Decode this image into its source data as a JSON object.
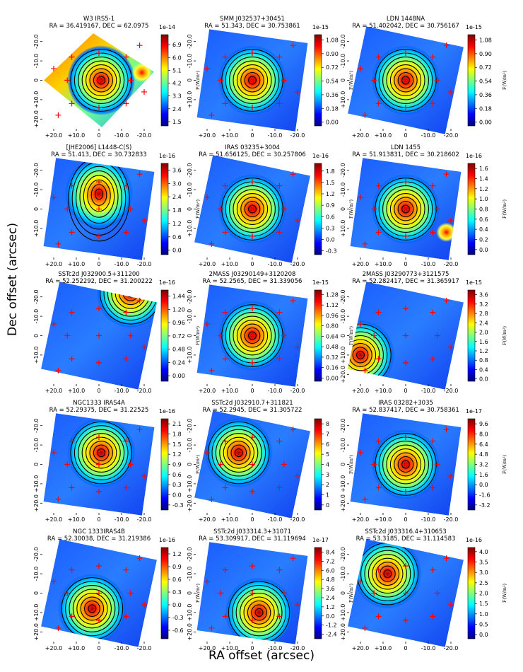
{
  "figure": {
    "xlabel": "RA offset (arcsec)",
    "ylabel": "Dec offset (arcsec)",
    "colorbar_unit": "F(W/m²)"
  },
  "chart_data": [
    {
      "type": "heatmap",
      "title": "W3 IRS5-1",
      "subtitle": "RA = 36.419167, DEC = 62.0975",
      "xlabel": "RA offset (arcsec)",
      "ylabel": "Dec offset (arcsec)",
      "xticks": [
        "+20.0",
        "+10.0",
        "0",
        "-10.0",
        "-20.0"
      ],
      "yticks": [
        "-20.0",
        "-10.0",
        "0",
        "+10.0",
        "+20.0"
      ],
      "cbar_ticks": [
        "1.5",
        "2.4",
        "3.3",
        "4.2",
        "5.1",
        "6.0",
        "6.9"
      ],
      "cbar_exp": "1e-14",
      "cmap_range": [
        1.2,
        7.6
      ],
      "peak_offset": [
        -1,
        0
      ],
      "secondary_peak": [
        -19,
        -4
      ],
      "shape": "diamond"
    },
    {
      "type": "heatmap",
      "title": "SMM J032537+30451",
      "subtitle": "RA = 51.343, DEC = 30.753861",
      "xlabel": "RA offset (arcsec)",
      "ylabel": "Dec offset (arcsec)",
      "xticks": [
        "+20.0",
        "+10.0",
        "0",
        "-10.0",
        "-20.0"
      ],
      "yticks": [
        "-20.0",
        "-10.0",
        "0",
        "+10.0"
      ],
      "cbar_ticks": [
        "0.00",
        "0.18",
        "0.36",
        "0.54",
        "0.72",
        "0.90",
        "1.08"
      ],
      "cbar_exp": "1e-15",
      "cmap_range": [
        -0.05,
        1.15
      ],
      "peak_offset": [
        0,
        0
      ],
      "shape": "tilted"
    },
    {
      "type": "heatmap",
      "title": "LDN 1448NA",
      "subtitle": "RA = 51.402042, DEC = 30.756167",
      "xlabel": "RA offset (arcsec)",
      "ylabel": "Dec offset (arcsec)",
      "xticks": [
        "+20.0",
        "+10.0",
        "0",
        "-10.0",
        "-20.0"
      ],
      "yticks": [
        "-20.0",
        "-10.0",
        "0",
        "+10.0"
      ],
      "cbar_ticks": [
        "0.00",
        "0.18",
        "0.36",
        "0.54",
        "0.72",
        "0.90",
        "1.08"
      ],
      "cbar_exp": "1e-15",
      "cmap_range": [
        -0.05,
        1.15
      ],
      "peak_offset": [
        0,
        0
      ],
      "shape": "tilted"
    },
    {
      "type": "heatmap",
      "title": "[JHE2006] L1448-C(S)",
      "subtitle": "RA = 51.413, DEC = 30.732833",
      "xlabel": "RA offset (arcsec)",
      "ylabel": "Dec offset (arcsec)",
      "xticks": [
        "+20.0",
        "+10.0",
        "0",
        "-10.0",
        "-20.0"
      ],
      "yticks": [
        "-20.0",
        "-10.0",
        "0",
        "+10.0"
      ],
      "cbar_ticks": [
        "0.0",
        "0.6",
        "1.2",
        "1.8",
        "2.4",
        "3.0",
        "3.6"
      ],
      "cbar_exp": "1e-16",
      "cmap_range": [
        -0.2,
        3.9
      ],
      "peak_offset": [
        0,
        -8
      ],
      "shape": "tilted"
    },
    {
      "type": "heatmap",
      "title": "IRAS 03235+3004",
      "subtitle": "RA = 51.656125, DEC = 30.257806",
      "xlabel": "RA offset (arcsec)",
      "ylabel": "Dec offset (arcsec)",
      "xticks": [
        "+20.0",
        "+10.0",
        "0",
        "-10.0",
        "-20.0"
      ],
      "yticks": [
        "-20.0",
        "-10.0",
        "0",
        "+10.0"
      ],
      "cbar_ticks": [
        "-0.3",
        "0.0",
        "0.3",
        "0.6",
        "0.9",
        "1.2",
        "1.5",
        "1.8"
      ],
      "cbar_exp": "1e-16",
      "cmap_range": [
        -0.4,
        2.0
      ],
      "peak_offset": [
        0,
        0
      ],
      "shape": "tilted"
    },
    {
      "type": "heatmap",
      "title": "LDN 1455",
      "subtitle": "RA = 51.913831, DEC = 30.218602",
      "xlabel": "RA offset (arcsec)",
      "ylabel": "Dec offset (arcsec)",
      "xticks": [
        "+20.0",
        "+10.0",
        "0",
        "-10.0",
        "-20.0"
      ],
      "yticks": [
        "-20.0",
        "-10.0",
        "0",
        "+10.0"
      ],
      "cbar_ticks": [
        "0.0",
        "0.2",
        "0.4",
        "0.6",
        "0.8",
        "1.0",
        "1.2",
        "1.4",
        "1.6"
      ],
      "cbar_exp": "1e-16",
      "cmap_range": [
        -0.1,
        1.7
      ],
      "peak_offset": [
        0,
        0
      ],
      "secondary_peak": [
        -18,
        12
      ],
      "shape": "tilted"
    },
    {
      "type": "heatmap",
      "title": "SSTc2d J032900.5+311200",
      "subtitle": "RA = 52.252292, DEC = 31.200222",
      "xlabel": "RA offset (arcsec)",
      "ylabel": "Dec offset (arcsec)",
      "xticks": [
        "+20.0",
        "+10.0",
        "0",
        "-10.0",
        "-20.0"
      ],
      "yticks": [
        "-20.0",
        "-10.0",
        "0",
        "+10.0"
      ],
      "cbar_ticks": [
        "0.00",
        "0.24",
        "0.48",
        "0.72",
        "0.96",
        "1.20",
        "1.44"
      ],
      "cbar_exp": "1e-16",
      "cmap_range": [
        -0.1,
        1.55
      ],
      "peak_offset": [
        -14,
        -22
      ],
      "shape": "tilted"
    },
    {
      "type": "heatmap",
      "title": "2MASS J03290149+3120208",
      "subtitle": "RA = 52.2565, DEC = 31.339056",
      "xlabel": "RA offset (arcsec)",
      "ylabel": "Dec offset (arcsec)",
      "xticks": [
        "+20.0",
        "+10.0",
        "0",
        "-10.0",
        "-20.0"
      ],
      "yticks": [
        "-20.0",
        "-10.0",
        "0",
        "+10.0"
      ],
      "cbar_ticks": [
        "0.00",
        "0.16",
        "0.32",
        "0.48",
        "0.64",
        "0.80",
        "0.96",
        "1.12",
        "1.28"
      ],
      "cbar_exp": "1e-15",
      "cmap_range": [
        -0.05,
        1.35
      ],
      "peak_offset": [
        0,
        0
      ],
      "shape": "tilted"
    },
    {
      "type": "heatmap",
      "title": "2MASS J03290773+3121575",
      "subtitle": "RA = 52.282417, DEC = 31.365917",
      "xlabel": "RA offset (arcsec)",
      "ylabel": "Dec offset (arcsec)",
      "xticks": [
        "+20.0",
        "+10.0",
        "0",
        "-10.0",
        "-20.0"
      ],
      "yticks": [
        "-20.0",
        "-10.0",
        "0",
        "+10.0",
        "+20.0"
      ],
      "cbar_ticks": [
        "0.0",
        "0.4",
        "0.8",
        "1.2",
        "1.6",
        "2.0",
        "2.4",
        "2.8",
        "3.2",
        "3.6"
      ],
      "cbar_exp": "1e-15",
      "cmap_range": [
        -0.1,
        3.8
      ],
      "peak_offset": [
        20,
        10
      ],
      "shape": "tilted"
    },
    {
      "type": "heatmap",
      "title": "NGC1333 IRAS4A",
      "subtitle": "RA = 52.29375, DEC = 31.22525",
      "xlabel": "RA offset (arcsec)",
      "ylabel": "Dec offset (arcsec)",
      "xticks": [
        "+20.0",
        "+10.0",
        "0",
        "-10.0",
        "-20.0"
      ],
      "yticks": [
        "-20.0",
        "-10.0",
        "0",
        "+10.0",
        "+20.0"
      ],
      "cbar_ticks": [
        "-0.3",
        "0.0",
        "0.3",
        "0.6",
        "0.9",
        "1.2",
        "1.5",
        "1.8",
        "2.1"
      ],
      "cbar_exp": "1e-16",
      "cmap_range": [
        -0.45,
        2.25
      ],
      "peak_offset": [
        -1,
        -6
      ],
      "shape": "tilted"
    },
    {
      "type": "heatmap",
      "title": "SSTc2d J032910.7+311821",
      "subtitle": "RA = 52.2945, DEC = 31.305722",
      "xlabel": "RA offset (arcsec)",
      "ylabel": "Dec offset (arcsec)",
      "xticks": [
        "+20.0",
        "+10.0",
        "0",
        "-10.0",
        "-20.0"
      ],
      "yticks": [
        "-20.0",
        "-10.0",
        "0",
        "+10.0",
        "+20.0"
      ],
      "cbar_ticks": [
        "0",
        "1",
        "2",
        "3",
        "4",
        "5",
        "6",
        "7",
        "8"
      ],
      "cbar_exp": "",
      "cmap_range": [
        -0.5,
        8.5
      ],
      "peak_offset": [
        6,
        -6
      ],
      "shape": "tilted"
    },
    {
      "type": "heatmap",
      "title": "IRAS 03282+3035",
      "subtitle": "RA = 52.837417, DEC = 30.758361",
      "xlabel": "RA offset (arcsec)",
      "ylabel": "Dec offset (arcsec)",
      "xticks": [
        "+20.0",
        "+10.0",
        "0",
        "-10.0",
        "-20.0"
      ],
      "yticks": [
        "-20.0",
        "-10.0",
        "0",
        "+10.0",
        "+20.0"
      ],
      "cbar_ticks": [
        "-3.2",
        "-1.6",
        "0.0",
        "1.6",
        "3.2",
        "4.8",
        "6.4",
        "8.0",
        "9.6"
      ],
      "cbar_exp": "1e-17",
      "cmap_range": [
        -4.0,
        10.4
      ],
      "peak_offset": [
        0,
        0
      ],
      "shape": "tilted"
    },
    {
      "type": "heatmap",
      "title": "NGC 1333IRAS4B",
      "subtitle": "RA = 52.30038, DEC = 31.219386",
      "xlabel": "RA offset (arcsec)",
      "ylabel": "Dec offset (arcsec)",
      "xticks": [
        "+20.0",
        "+10.0",
        "0",
        "-10.0",
        "-20.0"
      ],
      "yticks": [
        "-20.0",
        "-10.0",
        "0",
        "+10.0",
        "+20.0"
      ],
      "cbar_ticks": [
        "-0.6",
        "-0.3",
        "0.0",
        "0.3",
        "0.6",
        "0.9",
        "1.2"
      ],
      "cbar_exp": "1e-16",
      "cmap_range": [
        -0.8,
        1.35
      ],
      "peak_offset": [
        3,
        8
      ],
      "shape": "tilted"
    },
    {
      "type": "heatmap",
      "title": "SSTc2d J033314.3+31071",
      "subtitle": "RA = 53.309917, DEC = 31.119694",
      "xlabel": "RA offset (arcsec)",
      "ylabel": "Dec offset (arcsec)",
      "xticks": [
        "+20.0",
        "+10.0",
        "0",
        "-10.0",
        "-20.0"
      ],
      "yticks": [
        "-20.0",
        "-10.0",
        "0",
        "+10.0",
        "+20.0"
      ],
      "cbar_ticks": [
        "-2.4",
        "-1.2",
        "0.0",
        "1.2",
        "2.4",
        "3.6",
        "4.8",
        "6.0",
        "7.2",
        "8.4"
      ],
      "cbar_exp": "1e-17",
      "cmap_range": [
        -3.0,
        9.0
      ],
      "peak_offset": [
        -3,
        10
      ],
      "shape": "tilted"
    },
    {
      "type": "heatmap",
      "title": "SSTc2d J033316.4+310653",
      "subtitle": "RA = 53.3185, DEC = 31.114583",
      "xlabel": "RA offset (arcsec)",
      "ylabel": "Dec offset (arcsec)",
      "xticks": [
        "+20.0",
        "+10.0",
        "0",
        "-10.0",
        "-20.0"
      ],
      "yticks": [
        "-20.0",
        "-10.0",
        "0",
        "+10.0",
        "+20.0"
      ],
      "cbar_ticks": [
        "0.0",
        "0.5",
        "1.0",
        "1.5",
        "2.0",
        "2.5",
        "3.0",
        "3.5",
        "4.0"
      ],
      "cbar_exp": "1e-16",
      "cmap_range": [
        -0.2,
        4.2
      ],
      "peak_offset": [
        8,
        -10
      ],
      "shape": "tilted"
    }
  ]
}
